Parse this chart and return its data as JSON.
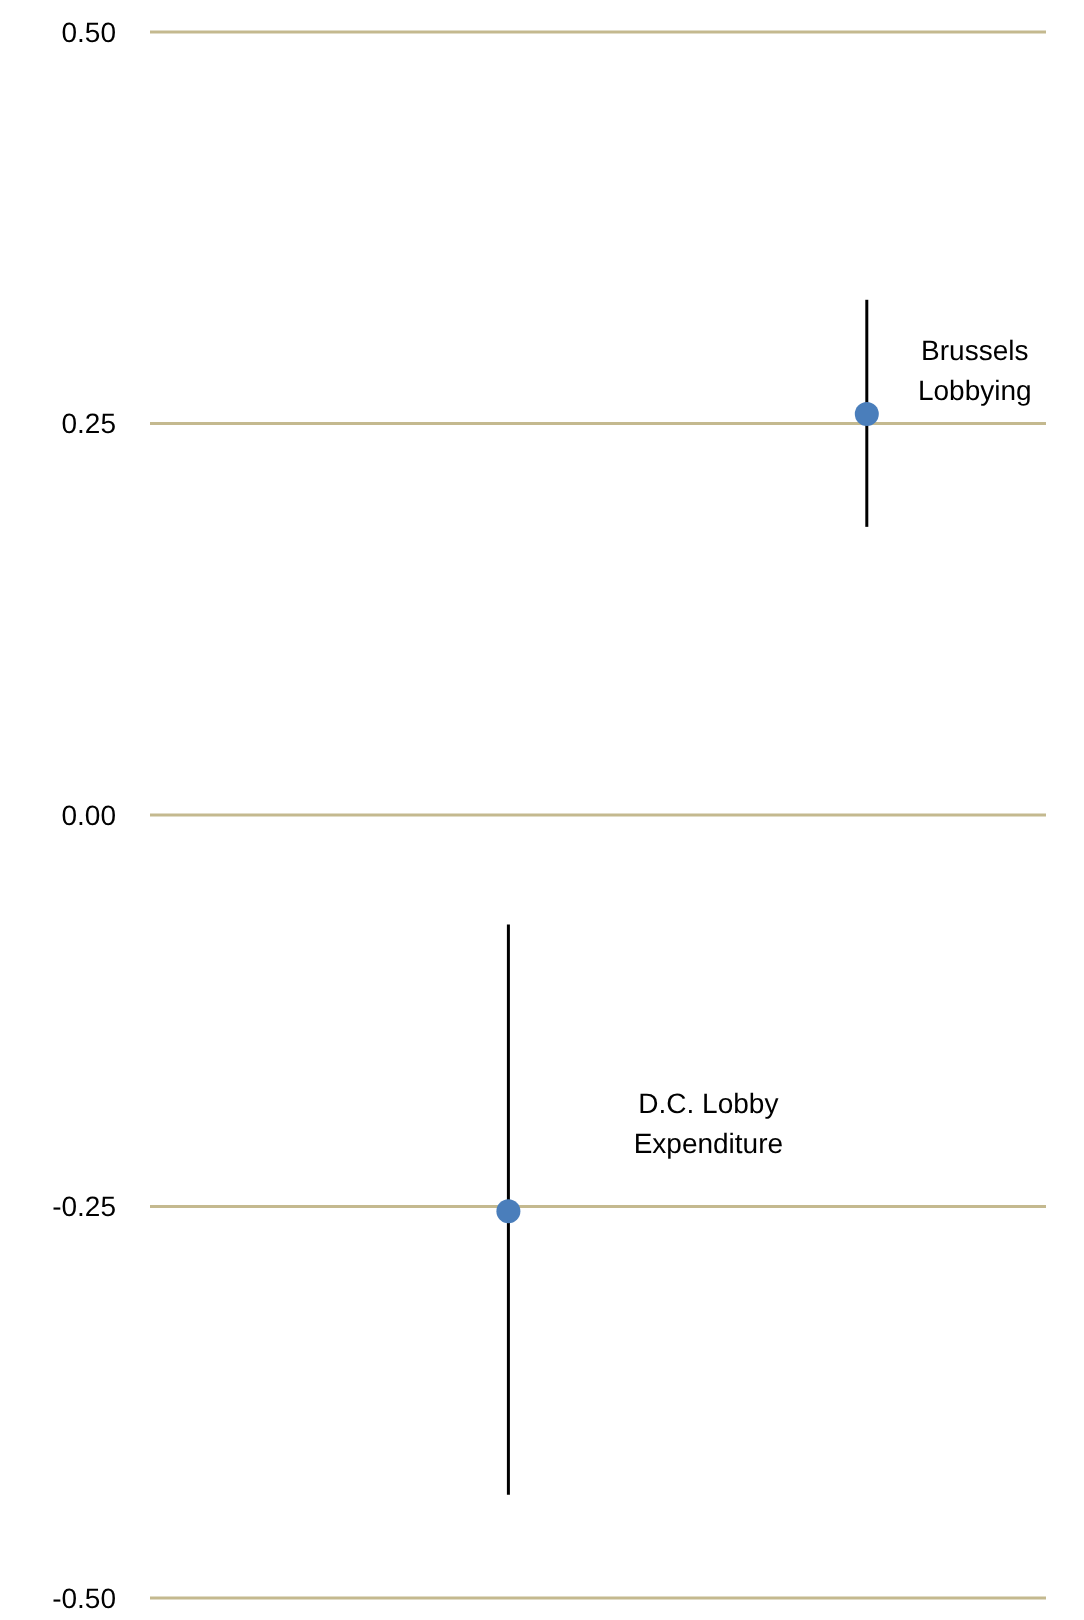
{
  "chart_data": {
    "type": "scatter",
    "categories": [
      null,
      null
    ],
    "series": [
      {
        "color": "#4a7ebb",
        "values": [
          -0.253,
          0.256
        ],
        "errors": [
          [
            -0.434,
            -0.07
          ],
          [
            0.184,
            0.329
          ]
        ]
      }
    ],
    "ylim": [
      -0.5,
      0.5
    ],
    "yticks": [
      {
        "value": -0.5,
        "label": "-0.50"
      },
      {
        "value": -0.25,
        "label": "-0.25"
      },
      {
        "value": 0,
        "label": "0.00"
      },
      {
        "value": 0.25,
        "label": "0.25"
      },
      {
        "value": 0.5,
        "label": "0.50"
      }
    ],
    "grid": "y",
    "marker": "circle",
    "annotations": [
      "D.C. Lobby Expenditure",
      "Brussels Lobbying"
    ]
  }
}
